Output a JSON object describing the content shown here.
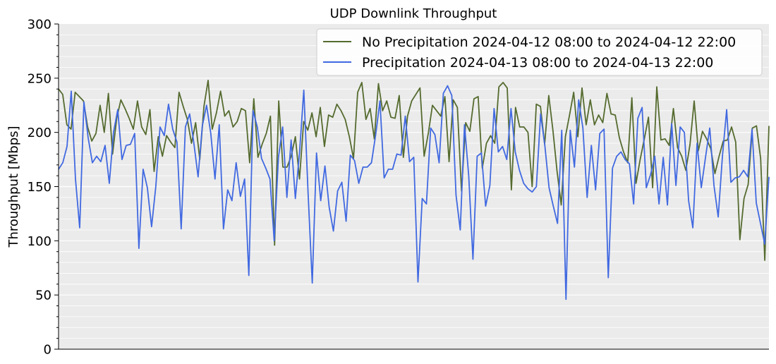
{
  "chart_data": {
    "type": "line",
    "title": "UDP Downlink Throughput",
    "xlabel": "",
    "ylabel": "Throughput [Mbps]",
    "ylim": [
      0,
      300
    ],
    "yticks": [
      0,
      50,
      100,
      150,
      200,
      250,
      300
    ],
    "x_tick_labels": "none",
    "grid": "horizontal",
    "legend_position": "top-right",
    "background": "#ebebeb",
    "series": [
      {
        "name": "No Precipitation 2024-04-12 08:00 to 2024-04-12 22:00",
        "color": "#556b2f",
        "values": [
          240,
          235,
          207,
          203,
          237,
          233,
          229,
          205,
          192,
          199,
          225,
          200,
          236,
          180,
          213,
          230,
          222,
          213,
          203,
          229,
          205,
          198,
          221,
          164,
          196,
          178,
          197,
          191,
          186,
          237,
          224,
          212,
          190,
          209,
          175,
          224,
          248,
          203,
          218,
          238,
          215,
          220,
          205,
          210,
          222,
          220,
          172,
          231,
          177,
          189,
          199,
          215,
          96,
          229,
          168,
          168,
          178,
          196,
          157,
          210,
          202,
          218,
          196,
          223,
          187,
          216,
          214,
          226,
          220,
          212,
          196,
          176,
          237,
          246,
          212,
          222,
          194,
          245,
          220,
          229,
          214,
          213,
          234,
          177,
          215,
          229,
          235,
          241,
          178,
          199,
          225,
          220,
          215,
          233,
          173,
          230,
          223,
          146,
          209,
          201,
          231,
          233,
          167,
          190,
          197,
          190,
          242,
          246,
          241,
          147,
          223,
          205,
          205,
          200,
          150,
          226,
          224,
          189,
          234,
          202,
          164,
          133,
          196,
          216,
          237,
          196,
          241,
          207,
          230,
          207,
          216,
          209,
          236,
          217,
          216,
          195,
          182,
          172,
          232,
          153,
          175,
          194,
          214,
          149,
          242,
          193,
          194,
          188,
          222,
          186,
          178,
          165,
          189,
          229,
          183,
          201,
          194,
          185,
          162,
          178,
          192,
          193,
          205,
          191,
          101,
          139,
          152,
          204,
          206,
          176,
          82,
          206
        ]
      },
      {
        "name": "Precipitation 2024-04-13 08:00 to 2024-04-13 22:00",
        "color": "#4169e1",
        "values": [
          166,
          172,
          187,
          238,
          157,
          112,
          228,
          195,
          172,
          178,
          173,
          188,
          153,
          200,
          221,
          175,
          188,
          189,
          199,
          93,
          166,
          149,
          113,
          150,
          205,
          197,
          226,
          203,
          191,
          111,
          205,
          217,
          190,
          159,
          206,
          225,
          199,
          157,
          207,
          111,
          147,
          137,
          172,
          141,
          157,
          68,
          220,
          205,
          176,
          167,
          157,
          100,
          177,
          205,
          140,
          193,
          139,
          182,
          239,
          145,
          61,
          181,
          137,
          169,
          131,
          109,
          146,
          154,
          118,
          179,
          174,
          153,
          168,
          168,
          172,
          198,
          229,
          158,
          166,
          166,
          180,
          179,
          215,
          173,
          177,
          62,
          139,
          134,
          204,
          198,
          172,
          236,
          243,
          234,
          142,
          110,
          207,
          160,
          83,
          178,
          181,
          132,
          151,
          222,
          182,
          187,
          175,
          222,
          182,
          165,
          153,
          148,
          145,
          150,
          217,
          188,
          149,
          132,
          116,
          202,
          46,
          202,
          168,
          230,
          204,
          140,
          188,
          147,
          199,
          203,
          66,
          167,
          178,
          182,
          175,
          171,
          134,
          213,
          223,
          149,
          161,
          178,
          134,
          177,
          133,
          208,
          151,
          205,
          200,
          137,
          112,
          190,
          149,
          177,
          204,
          151,
          122,
          178,
          221,
          154,
          158,
          159,
          165,
          159,
          203,
          135,
          116,
          97,
          159
        ]
      }
    ]
  }
}
